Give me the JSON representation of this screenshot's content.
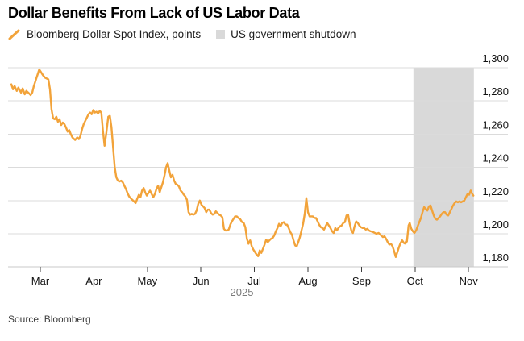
{
  "title": "Dollar Benefits From Lack of US Labor Data",
  "legend": {
    "series_label": "Bloomberg Dollar Spot Index, points",
    "band_label": "US government shutdown"
  },
  "source": "Source: Bloomberg",
  "colors": {
    "line": "#F2A33A",
    "band": "#D9D9D9",
    "grid": "#DBDBDB",
    "axis": "#C9C9C9",
    "tick": "#3A3A3A",
    "month_text": "#111111",
    "year_text": "#7A7A7A",
    "y_label_text": "#111111"
  },
  "chart_data": {
    "type": "line",
    "title": "Dollar Benefits From Lack of US Labor Data",
    "x_axis": {
      "tick_labels": [
        "Mar",
        "Apr",
        "May",
        "Jun",
        "Jul",
        "Aug",
        "Sep",
        "Oct",
        "Nov"
      ],
      "tick_positions": [
        3,
        4,
        5,
        6,
        7,
        8,
        9,
        10,
        11
      ],
      "year_label": "2025",
      "x_unit": "month of 2025 (decimal)"
    },
    "y_axis": {
      "label": "points",
      "tick_labels": [
        "1,300",
        "1,280",
        "1,260",
        "1,240",
        "1,220",
        "1,200",
        "1,180"
      ],
      "tick_values": [
        1300,
        1280,
        1260,
        1240,
        1220,
        1200,
        1180
      ],
      "range": [
        1180,
        1300
      ],
      "side": "right"
    },
    "grid": "horizontal",
    "legend_position": "top-left",
    "annotations": [
      {
        "kind": "vertical_band",
        "label": "US government shutdown",
        "x_start": 9.97,
        "x_end": 11.1,
        "color": "#D9D9D9"
      }
    ],
    "series": [
      {
        "name": "Bloomberg Dollar Spot Index, points",
        "color": "#F2A33A",
        "points": [
          [
            2.46,
            1290
          ],
          [
            2.49,
            1287
          ],
          [
            2.52,
            1289
          ],
          [
            2.56,
            1286
          ],
          [
            2.59,
            1288
          ],
          [
            2.64,
            1285
          ],
          [
            2.67,
            1287.5
          ],
          [
            2.71,
            1284
          ],
          [
            2.74,
            1286
          ],
          [
            2.79,
            1284.5
          ],
          [
            2.82,
            1283.5
          ],
          [
            2.85,
            1285
          ],
          [
            2.88,
            1289
          ],
          [
            2.92,
            1293
          ],
          [
            2.95,
            1296
          ],
          [
            2.98,
            1299
          ],
          [
            3.02,
            1297
          ],
          [
            3.05,
            1295.5
          ],
          [
            3.09,
            1294
          ],
          [
            3.12,
            1293.5
          ],
          [
            3.15,
            1293
          ],
          [
            3.18,
            1287
          ],
          [
            3.21,
            1275
          ],
          [
            3.24,
            1269.5
          ],
          [
            3.27,
            1269
          ],
          [
            3.3,
            1270.5
          ],
          [
            3.33,
            1267.5
          ],
          [
            3.36,
            1269
          ],
          [
            3.39,
            1265.5
          ],
          [
            3.42,
            1267
          ],
          [
            3.45,
            1266
          ],
          [
            3.48,
            1264
          ],
          [
            3.51,
            1261.5
          ],
          [
            3.54,
            1262.5
          ],
          [
            3.57,
            1260
          ],
          [
            3.6,
            1258
          ],
          [
            3.65,
            1256.5
          ],
          [
            3.69,
            1258
          ],
          [
            3.72,
            1257
          ],
          [
            3.75,
            1259
          ],
          [
            3.78,
            1263
          ],
          [
            3.81,
            1266
          ],
          [
            3.84,
            1268
          ],
          [
            3.87,
            1270
          ],
          [
            3.9,
            1272
          ],
          [
            3.93,
            1273
          ],
          [
            3.96,
            1272
          ],
          [
            3.99,
            1274.5
          ],
          [
            4.02,
            1273
          ],
          [
            4.05,
            1273.5
          ],
          [
            4.08,
            1272.5
          ],
          [
            4.11,
            1274
          ],
          [
            4.14,
            1273
          ],
          [
            4.17,
            1262
          ],
          [
            4.2,
            1253
          ],
          [
            4.23,
            1260
          ],
          [
            4.27,
            1270.5
          ],
          [
            4.3,
            1271
          ],
          [
            4.33,
            1264
          ],
          [
            4.36,
            1252
          ],
          [
            4.39,
            1240
          ],
          [
            4.42,
            1234
          ],
          [
            4.45,
            1232
          ],
          [
            4.48,
            1231.5
          ],
          [
            4.51,
            1232
          ],
          [
            4.54,
            1231
          ],
          [
            4.57,
            1229
          ],
          [
            4.6,
            1227
          ],
          [
            4.63,
            1224.5
          ],
          [
            4.66,
            1222.5
          ],
          [
            4.7,
            1221
          ],
          [
            4.75,
            1219.5
          ],
          [
            4.78,
            1218.5
          ],
          [
            4.81,
            1221
          ],
          [
            4.84,
            1223.5
          ],
          [
            4.87,
            1222
          ],
          [
            4.9,
            1226
          ],
          [
            4.93,
            1227.5
          ],
          [
            4.96,
            1225
          ],
          [
            4.99,
            1223
          ],
          [
            5.02,
            1224.5
          ],
          [
            5.05,
            1226
          ],
          [
            5.08,
            1224
          ],
          [
            5.11,
            1222
          ],
          [
            5.14,
            1224
          ],
          [
            5.17,
            1227
          ],
          [
            5.2,
            1229
          ],
          [
            5.23,
            1225
          ],
          [
            5.26,
            1228
          ],
          [
            5.29,
            1231
          ],
          [
            5.32,
            1235
          ],
          [
            5.35,
            1240
          ],
          [
            5.38,
            1242.5
          ],
          [
            5.41,
            1238
          ],
          [
            5.44,
            1234
          ],
          [
            5.47,
            1235.5
          ],
          [
            5.5,
            1232
          ],
          [
            5.53,
            1230
          ],
          [
            5.56,
            1229.5
          ],
          [
            5.59,
            1228.5
          ],
          [
            5.62,
            1226
          ],
          [
            5.65,
            1225
          ],
          [
            5.68,
            1223.5
          ],
          [
            5.71,
            1222.5
          ],
          [
            5.74,
            1220.5
          ],
          [
            5.77,
            1213
          ],
          [
            5.8,
            1211.5
          ],
          [
            5.83,
            1212
          ],
          [
            5.86,
            1211.5
          ],
          [
            5.89,
            1212
          ],
          [
            5.92,
            1214
          ],
          [
            5.95,
            1218
          ],
          [
            5.98,
            1220
          ],
          [
            6.01,
            1217.5
          ],
          [
            6.04,
            1216.5
          ],
          [
            6.07,
            1215.5
          ],
          [
            6.1,
            1213
          ],
          [
            6.13,
            1214.5
          ],
          [
            6.16,
            1214.5
          ],
          [
            6.19,
            1212.5
          ],
          [
            6.22,
            1211.5
          ],
          [
            6.25,
            1212
          ],
          [
            6.28,
            1213.5
          ],
          [
            6.31,
            1212.5
          ],
          [
            6.34,
            1211.5
          ],
          [
            6.37,
            1211
          ],
          [
            6.4,
            1210
          ],
          [
            6.43,
            1203
          ],
          [
            6.46,
            1202
          ],
          [
            6.49,
            1202
          ],
          [
            6.52,
            1202.5
          ],
          [
            6.55,
            1205.5
          ],
          [
            6.58,
            1207.5
          ],
          [
            6.61,
            1209
          ],
          [
            6.64,
            1210.5
          ],
          [
            6.67,
            1210.5
          ],
          [
            6.7,
            1209.5
          ],
          [
            6.73,
            1209
          ],
          [
            6.77,
            1207
          ],
          [
            6.8,
            1206.5
          ],
          [
            6.83,
            1204
          ],
          [
            6.86,
            1197
          ],
          [
            6.89,
            1194
          ],
          [
            6.92,
            1196
          ],
          [
            6.95,
            1192.5
          ],
          [
            6.98,
            1190.5
          ],
          [
            7.01,
            1189
          ],
          [
            7.04,
            1187.5
          ],
          [
            7.07,
            1186.5
          ],
          [
            7.1,
            1190
          ],
          [
            7.13,
            1188.5
          ],
          [
            7.16,
            1191
          ],
          [
            7.19,
            1193.5
          ],
          [
            7.22,
            1196.5
          ],
          [
            7.25,
            1195
          ],
          [
            7.28,
            1196
          ],
          [
            7.31,
            1197
          ],
          [
            7.34,
            1197.5
          ],
          [
            7.37,
            1199
          ],
          [
            7.4,
            1201.5
          ],
          [
            7.43,
            1203.5
          ],
          [
            7.46,
            1206
          ],
          [
            7.49,
            1204.5
          ],
          [
            7.52,
            1206.5
          ],
          [
            7.55,
            1207
          ],
          [
            7.58,
            1205.5
          ],
          [
            7.61,
            1205.5
          ],
          [
            7.64,
            1203.5
          ],
          [
            7.67,
            1201
          ],
          [
            7.7,
            1199.5
          ],
          [
            7.73,
            1196
          ],
          [
            7.76,
            1193
          ],
          [
            7.79,
            1192.5
          ],
          [
            7.82,
            1195
          ],
          [
            7.85,
            1198
          ],
          [
            7.88,
            1202
          ],
          [
            7.91,
            1206
          ],
          [
            7.94,
            1212
          ],
          [
            7.97,
            1221.5
          ],
          [
            8,
            1213
          ],
          [
            8.03,
            1210.5
          ],
          [
            8.06,
            1210.5
          ],
          [
            8.09,
            1210.5
          ],
          [
            8.12,
            1209.5
          ],
          [
            8.15,
            1209.5
          ],
          [
            8.18,
            1207.5
          ],
          [
            8.21,
            1205.5
          ],
          [
            8.24,
            1204
          ],
          [
            8.27,
            1203.5
          ],
          [
            8.3,
            1202.5
          ],
          [
            8.33,
            1204.5
          ],
          [
            8.36,
            1206.5
          ],
          [
            8.39,
            1205
          ],
          [
            8.42,
            1203.5
          ],
          [
            8.45,
            1201.5
          ],
          [
            8.48,
            1200.5
          ],
          [
            8.51,
            1203.5
          ],
          [
            8.54,
            1202
          ],
          [
            8.57,
            1203.5
          ],
          [
            8.6,
            1204.5
          ],
          [
            8.63,
            1205
          ],
          [
            8.66,
            1206.5
          ],
          [
            8.69,
            1207
          ],
          [
            8.72,
            1211
          ],
          [
            8.75,
            1211.5
          ],
          [
            8.78,
            1206
          ],
          [
            8.81,
            1202
          ],
          [
            8.84,
            1200.5
          ],
          [
            8.87,
            1204.5
          ],
          [
            8.9,
            1207.5
          ],
          [
            8.93,
            1206.5
          ],
          [
            8.96,
            1205
          ],
          [
            8.99,
            1204
          ],
          [
            9.02,
            1203.5
          ],
          [
            9.05,
            1203.5
          ],
          [
            9.08,
            1202.5
          ],
          [
            9.11,
            1203
          ],
          [
            9.14,
            1202
          ],
          [
            9.17,
            1201.5
          ],
          [
            9.22,
            1201
          ],
          [
            9.25,
            1200.5
          ],
          [
            9.28,
            1200
          ],
          [
            9.32,
            1200.5
          ],
          [
            9.35,
            1199.5
          ],
          [
            9.4,
            1198
          ],
          [
            9.43,
            1198.5
          ],
          [
            9.46,
            1197
          ],
          [
            9.49,
            1195
          ],
          [
            9.52,
            1193.5
          ],
          [
            9.55,
            1194
          ],
          [
            9.58,
            1192.5
          ],
          [
            9.61,
            1189.5
          ],
          [
            9.64,
            1186
          ],
          [
            9.67,
            1189
          ],
          [
            9.7,
            1192
          ],
          [
            9.73,
            1194.5
          ],
          [
            9.76,
            1196
          ],
          [
            9.79,
            1194.5
          ],
          [
            9.82,
            1194
          ],
          [
            9.85,
            1195.5
          ],
          [
            9.88,
            1205
          ],
          [
            9.9,
            1206.5
          ],
          [
            9.93,
            1203
          ],
          [
            9.96,
            1201.5
          ],
          [
            9.99,
            1200.5
          ],
          [
            10.02,
            1202
          ],
          [
            10.05,
            1204.5
          ],
          [
            10.08,
            1207
          ],
          [
            10.11,
            1209.5
          ],
          [
            10.14,
            1213
          ],
          [
            10.17,
            1216
          ],
          [
            10.2,
            1215
          ],
          [
            10.23,
            1214
          ],
          [
            10.26,
            1216.5
          ],
          [
            10.29,
            1217
          ],
          [
            10.32,
            1214
          ],
          [
            10.35,
            1211
          ],
          [
            10.38,
            1209
          ],
          [
            10.41,
            1208.5
          ],
          [
            10.44,
            1209.5
          ],
          [
            10.47,
            1210.5
          ],
          [
            10.5,
            1212
          ],
          [
            10.53,
            1213
          ],
          [
            10.56,
            1213
          ],
          [
            10.59,
            1211.5
          ],
          [
            10.62,
            1211
          ],
          [
            10.65,
            1213
          ],
          [
            10.68,
            1215
          ],
          [
            10.71,
            1217
          ],
          [
            10.74,
            1218.5
          ],
          [
            10.77,
            1219.5
          ],
          [
            10.8,
            1219
          ],
          [
            10.83,
            1219.5
          ],
          [
            10.86,
            1219
          ],
          [
            10.89,
            1219.5
          ],
          [
            10.92,
            1220
          ],
          [
            10.95,
            1222
          ],
          [
            10.98,
            1224
          ],
          [
            11.01,
            1223.5
          ],
          [
            11.04,
            1226
          ],
          [
            11.06,
            1224.5
          ],
          [
            11.09,
            1223
          ]
        ]
      }
    ]
  }
}
